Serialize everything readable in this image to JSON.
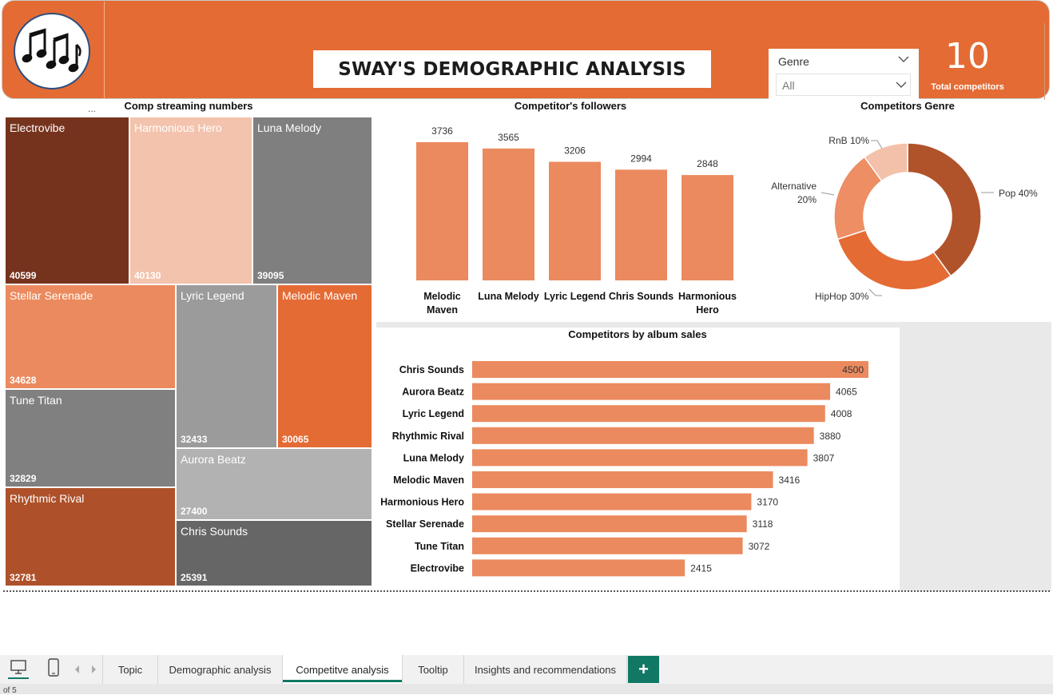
{
  "header": {
    "title": "SWAY'S DEMOGRAPHIC ANALYSIS",
    "logo_icon": "music-notes-icon",
    "slicer": {
      "label": "Genre",
      "value": "All"
    },
    "kpi": {
      "value": "10",
      "label": "Total competitors"
    }
  },
  "colors": {
    "brand": "#e46b34",
    "bar": "#eb8a5e",
    "accent_tab": "#117865"
  },
  "treemap": {
    "title": "Comp streaming numbers",
    "more": "...",
    "cells": [
      {
        "name": "Electrovibe",
        "value": "40599"
      },
      {
        "name": "Harmonious Hero",
        "value": "40130"
      },
      {
        "name": "Luna Melody",
        "value": "39095"
      },
      {
        "name": "Stellar Serenade",
        "value": "34628"
      },
      {
        "name": "Lyric Legend",
        "value": "32433"
      },
      {
        "name": "Melodic Maven",
        "value": "30065"
      },
      {
        "name": "Tune Titan",
        "value": "32829"
      },
      {
        "name": "Aurora Beatz",
        "value": "27400"
      },
      {
        "name": "Rhythmic Rival",
        "value": "32781"
      },
      {
        "name": "Chris Sounds",
        "value": "25391"
      }
    ]
  },
  "followers": {
    "title": "Competitor's followers",
    "labels": [
      "3736",
      "3565",
      "3206",
      "2994",
      "2848"
    ],
    "categories": [
      [
        "Melodic",
        "Maven"
      ],
      [
        "Luna Melody"
      ],
      [
        "Lyric Legend"
      ],
      [
        "Chris Sounds"
      ],
      [
        "Harmonious",
        "Hero"
      ]
    ]
  },
  "genre": {
    "title": "Competitors Genre",
    "labels": [
      "Pop 40%",
      "HipHop 30%",
      "Alternative",
      "20%",
      "RnB 10%"
    ]
  },
  "album": {
    "title": "Competitors by album sales"
  },
  "chart_data": [
    {
      "type": "treemap",
      "title": "Comp streaming numbers",
      "categories": [
        "Electrovibe",
        "Harmonious Hero",
        "Luna Melody",
        "Stellar Serenade",
        "Tune Titan",
        "Rhythmic Rival",
        "Lyric Legend",
        "Melodic Maven",
        "Aurora Beatz",
        "Chris Sounds"
      ],
      "values": [
        40599,
        40130,
        39095,
        34628,
        32829,
        32781,
        32433,
        30065,
        27400,
        25391
      ]
    },
    {
      "type": "bar",
      "title": "Competitor's followers",
      "categories": [
        "Melodic Maven",
        "Luna Melody",
        "Lyric Legend",
        "Chris Sounds",
        "Harmonious Hero"
      ],
      "values": [
        3736,
        3565,
        3206,
        2994,
        2848
      ],
      "ylim": [
        0,
        3736
      ]
    },
    {
      "type": "pie",
      "title": "Competitors Genre",
      "categories": [
        "Pop",
        "HipHop",
        "Alternative",
        "RnB"
      ],
      "values": [
        40,
        30,
        20,
        10
      ],
      "colors": [
        "#b0532a",
        "#e46b34",
        "#ed8e64",
        "#f3c1aa"
      ]
    },
    {
      "type": "bar",
      "orientation": "horizontal",
      "title": "Competitors by album sales",
      "categories": [
        "Chris Sounds",
        "Aurora Beatz",
        "Lyric Legend",
        "Rhythmic Rival",
        "Luna Melody",
        "Melodic Maven",
        "Harmonious Hero",
        "Stellar Serenade",
        "Tune Titan",
        "Electrovibe"
      ],
      "values": [
        4500,
        4065,
        4008,
        3880,
        3807,
        3416,
        3170,
        3118,
        3072,
        2415
      ],
      "xlim": [
        0,
        4500
      ]
    }
  ],
  "footer": {
    "tabs": [
      "Topic",
      "Demographic analysis",
      "Competitve analysis",
      "Tooltip",
      "Insights and recommendations"
    ],
    "active_tab": 2,
    "add_label": "+",
    "page_count": "of 5"
  }
}
